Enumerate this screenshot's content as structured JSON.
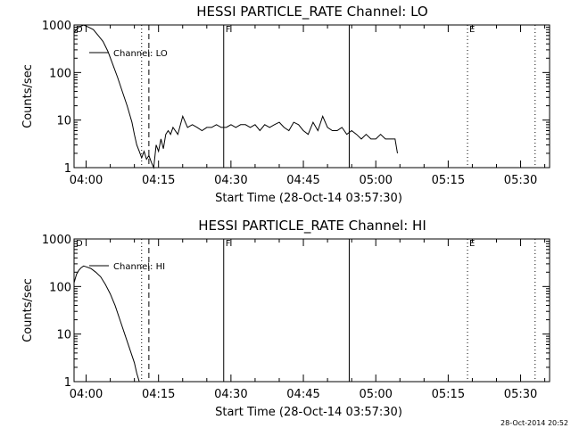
{
  "footer_timestamp": "28-Oct-2014 20:52",
  "chart_data": [
    {
      "type": "line",
      "title": "HESSI PARTICLE_RATE Channel: LO",
      "xlabel": "Start Time (28-Oct-14 03:57:30)",
      "ylabel": "Counts/sec",
      "yscale": "log",
      "ylim": [
        1,
        1000
      ],
      "xlim": [
        "03:57:30",
        "05:36:00"
      ],
      "x_ticks": [
        "04:00",
        "04:15",
        "04:30",
        "04:45",
        "05:00",
        "05:15",
        "05:30"
      ],
      "y_ticks": [
        "1",
        "10",
        "100",
        "1000"
      ],
      "legend": "Channel: LO",
      "legend_position": "top-left",
      "grid": false,
      "markers": [
        {
          "label": "D",
          "time": "03:57:30",
          "style": "none"
        },
        {
          "label": "",
          "time": "04:11:30",
          "style": "dotted"
        },
        {
          "label": "",
          "time": "04:13:00",
          "style": "dashed"
        },
        {
          "label": "F",
          "time": "04:28:30",
          "style": "solid"
        },
        {
          "label": "",
          "time": "04:54:30",
          "style": "solid"
        },
        {
          "label": "E",
          "time": "05:19:00",
          "style": "dotted"
        },
        {
          "label": "",
          "time": "05:33:00",
          "style": "dotted"
        }
      ],
      "series": [
        {
          "name": "Channel: LO",
          "x": [
            "03:57:30",
            "03:58:30",
            "03:59:30",
            "04:00:30",
            "04:01:30",
            "04:02:30",
            "04:03:30",
            "04:04:30",
            "04:05:30",
            "04:06:30",
            "04:07:30",
            "04:08:30",
            "04:09:30",
            "04:10:00",
            "04:10:30",
            "04:11:00",
            "04:11:30",
            "04:12:00",
            "04:12:30",
            "04:13:00",
            "04:13:30",
            "04:14:00",
            "04:14:30",
            "04:15:00",
            "04:15:30",
            "04:16:00",
            "04:16:30",
            "04:17:00",
            "04:17:30",
            "04:18:00",
            "04:19:00",
            "04:20:00",
            "04:21:00",
            "04:22:00",
            "04:23:00",
            "04:24:00",
            "04:25:00",
            "04:26:00",
            "04:27:00",
            "04:28:00",
            "04:29:00",
            "04:30:00",
            "04:31:00",
            "04:32:00",
            "04:33:00",
            "04:34:00",
            "04:35:00",
            "04:36:00",
            "04:37:00",
            "04:38:00",
            "04:39:00",
            "04:40:00",
            "04:41:00",
            "04:42:00",
            "04:43:00",
            "04:44:00",
            "04:45:00",
            "04:46:00",
            "04:47:00",
            "04:48:00",
            "04:49:00",
            "04:50:00",
            "04:51:00",
            "04:52:00",
            "04:53:00",
            "04:54:00",
            "04:55:00",
            "04:56:00",
            "04:57:00",
            "04:58:00",
            "04:59:00",
            "05:00:00",
            "05:01:00",
            "05:02:00",
            "05:03:00",
            "05:04:00",
            "05:04:30"
          ],
          "values": [
            700,
            900,
            1000,
            900,
            800,
            600,
            450,
            280,
            150,
            80,
            40,
            20,
            9,
            5,
            3,
            2.2,
            1.6,
            2.2,
            1.5,
            1.8,
            1.3,
            1,
            3,
            2.2,
            4,
            2.5,
            5,
            6,
            5,
            7,
            5,
            12,
            7,
            8,
            7,
            6,
            7,
            7,
            8,
            7,
            7,
            8,
            7,
            8,
            8,
            7,
            8,
            6,
            8,
            7,
            8,
            9,
            7,
            6,
            9,
            8,
            6,
            5,
            9,
            6,
            12,
            7,
            6,
            6,
            7,
            5,
            6,
            5,
            4,
            5,
            4,
            4,
            5,
            4,
            4,
            4,
            2
          ]
        }
      ]
    },
    {
      "type": "line",
      "title": "HESSI PARTICLE_RATE Channel: HI",
      "xlabel": "Start Time (28-Oct-14 03:57:30)",
      "ylabel": "Counts/sec",
      "yscale": "log",
      "ylim": [
        1,
        1000
      ],
      "xlim": [
        "03:57:30",
        "05:36:00"
      ],
      "x_ticks": [
        "04:00",
        "04:15",
        "04:30",
        "04:45",
        "05:00",
        "05:15",
        "05:30"
      ],
      "y_ticks": [
        "1",
        "10",
        "100",
        "1000"
      ],
      "legend": "Channel: HI",
      "legend_position": "top-left",
      "grid": false,
      "markers": [
        {
          "label": "D",
          "time": "03:57:30",
          "style": "none"
        },
        {
          "label": "",
          "time": "04:11:30",
          "style": "dotted"
        },
        {
          "label": "",
          "time": "04:13:00",
          "style": "dashed"
        },
        {
          "label": "F",
          "time": "04:28:30",
          "style": "solid"
        },
        {
          "label": "",
          "time": "04:54:30",
          "style": "solid"
        },
        {
          "label": "E",
          "time": "05:19:00",
          "style": "dotted"
        },
        {
          "label": "",
          "time": "05:33:00",
          "style": "dotted"
        }
      ],
      "series": [
        {
          "name": "Channel: HI",
          "x": [
            "03:57:30",
            "03:58:00",
            "03:58:30",
            "03:59:00",
            "03:59:30",
            "04:00:00",
            "04:01:00",
            "04:02:00",
            "04:03:00",
            "04:04:00",
            "04:05:00",
            "04:06:00",
            "04:07:00",
            "04:08:00",
            "04:09:00",
            "04:10:00",
            "04:10:30",
            "04:11:00"
          ],
          "values": [
            120,
            180,
            220,
            250,
            270,
            260,
            240,
            200,
            160,
            110,
            70,
            40,
            20,
            10,
            5,
            2.5,
            1.5,
            1
          ]
        }
      ]
    }
  ]
}
